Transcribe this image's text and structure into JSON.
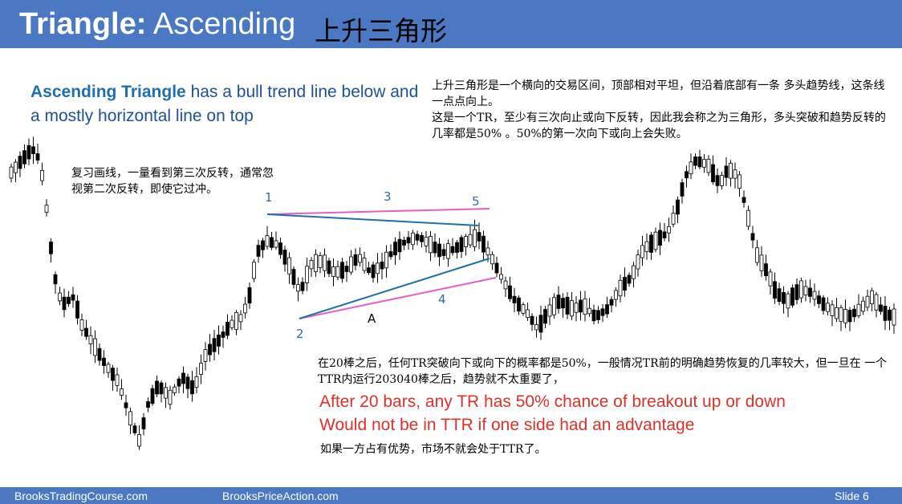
{
  "header": {
    "title_bold": "Triangle:",
    "title_rest": "Ascending",
    "title_cn": "上升三角形"
  },
  "left_description": {
    "bold": "Ascending Triangle",
    "rest": "has a bull trend line below and a mostly horizontal line on top"
  },
  "notes": {
    "top_right_line1": "上升三角形是一个横向的交易区间，顶部相对平坦，但沿着底部有一条 多头趋势线，这条线一点点向上。",
    "top_right_line2": "这是一个TR，至少有三次向止或向下反转，因此我会称之为三角形，多头突破和趋势反转的几率都是50% 。50%的第一次向下或向上会失败。",
    "review_note": "复习画线，一量看到第三次反转，通常忽视第二次反转，即使它过冲。",
    "bottom_cn": "在20棒之后，任何TR突破向下或向下的概率都是50%，一般情况TR前的明确趋势恢复的几率较大，但一旦在 一个TTR内运行203040棒之后，趋势就不太重要了，",
    "red_line1": "After 20 bars, any TR has 50% chance of breakout up or down",
    "red_line2": "Would not be in TTR if one side had an advantage",
    "bottom_cn2": "如果一方占有优势，市场不就会处于TTR了。"
  },
  "labels": {
    "l1": "1",
    "l2": "2",
    "l3": "3",
    "l4": "4",
    "l5": "5",
    "lA": "A"
  },
  "footer": {
    "left": "BrooksTradingCourse.com",
    "mid": "BrooksPriceAction.com",
    "slide": "Slide  6"
  },
  "colors": {
    "header_bg": "#4a78c2",
    "blue_text": "#1f4f9a",
    "red_text": "#e0302a",
    "magenta_line": "#e060c8",
    "blue_line": "#1f6fa8",
    "label_blue": "#2c6ea8"
  }
}
